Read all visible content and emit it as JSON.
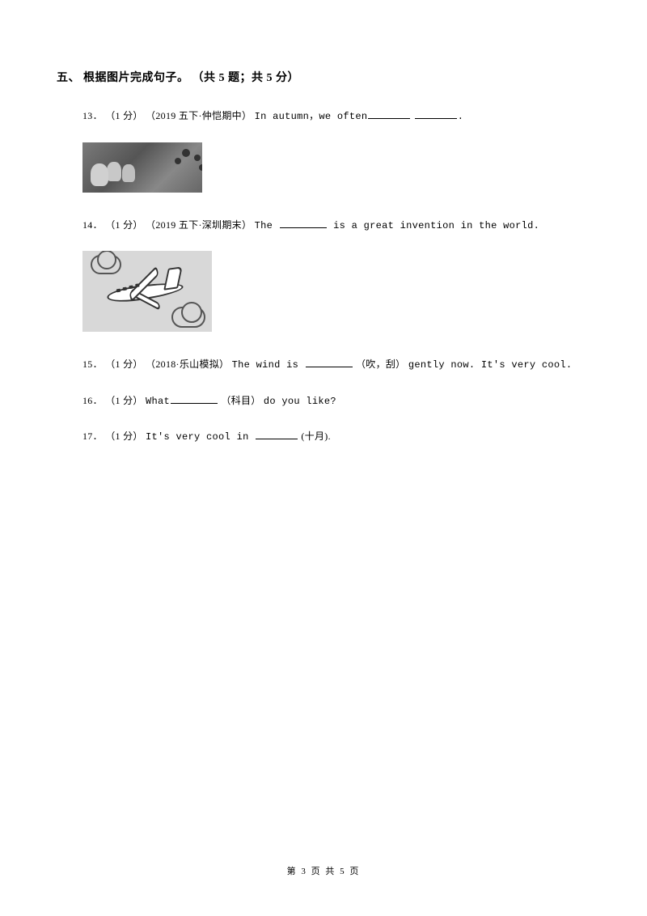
{
  "section": {
    "number": "五、",
    "title": "根据图片完成句子。",
    "info": "（共 5 题；共 5 分）"
  },
  "questions": {
    "q13": {
      "num": "13．",
      "points": "（1 分）",
      "tag": "（2019 五下·仲恺期中）",
      "text_before": "In autumn，we often",
      "text_after": "."
    },
    "q14": {
      "num": "14．",
      "points": "（1 分）",
      "tag": "（2019 五下·深圳期末）",
      "text_before": "The ",
      "text_after": " is a great invention in the world."
    },
    "q15": {
      "num": "15．",
      "points": "（1 分）",
      "tag": "（2018·乐山模拟）",
      "text_before": "The wind is ",
      "hint": "（吹，刮）",
      "text_after": "gently now. It's very cool."
    },
    "q16": {
      "num": "16．",
      "points": "（1 分）",
      "text_before": " What",
      "hint": "（科目）",
      "text_after": "do you like?"
    },
    "q17": {
      "num": "17．",
      "points": "（1 分）",
      "text_before": " It's very cool in ",
      "hint": "(十月).",
      "text_after": ""
    }
  },
  "footer": {
    "prefix": "第 ",
    "page": "3",
    "mid": " 页 共 ",
    "total": "5",
    "suffix": " 页"
  }
}
